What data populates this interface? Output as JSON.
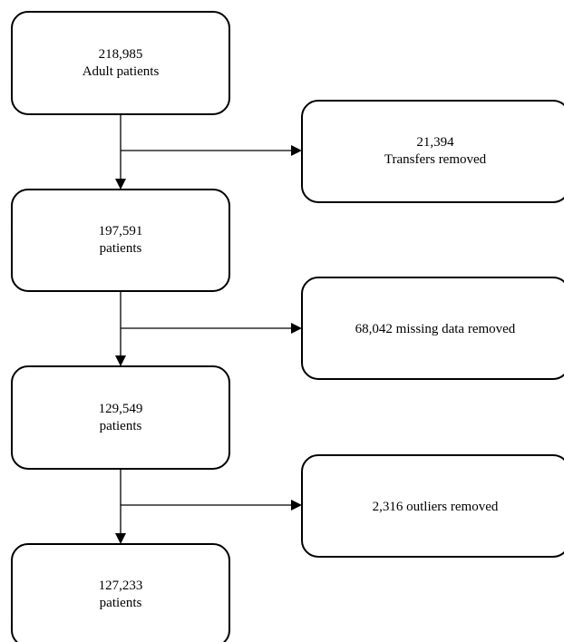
{
  "main_steps": [
    {
      "lines": [
        "218,985",
        "Adult patients"
      ]
    },
    {
      "lines": [
        "197,591",
        "patients"
      ]
    },
    {
      "lines": [
        "129,549",
        "patients"
      ]
    },
    {
      "lines": [
        "127,233",
        "patients"
      ]
    }
  ],
  "exclusions": [
    {
      "lines": [
        "21,394",
        "Transfers removed"
      ]
    },
    {
      "lines": [
        "68,042 missing data removed"
      ]
    },
    {
      "lines": [
        "2,316 outliers removed"
      ]
    }
  ]
}
